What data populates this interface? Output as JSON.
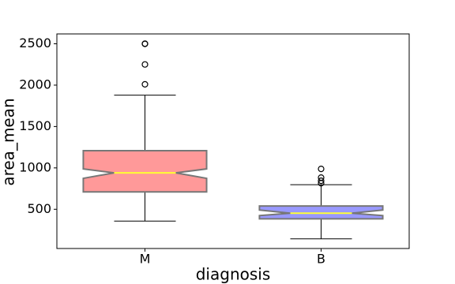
{
  "chart_data": {
    "type": "box",
    "xlabel": "diagnosis",
    "ylabel": "area_mean",
    "categories": [
      "M",
      "B"
    ],
    "boxes": [
      {
        "whislo": 357,
        "q1": 710,
        "notch_lo": 874,
        "med": 940,
        "notch_hi": 988,
        "q3": 1208,
        "whishi": 1879,
        "fliers": [
          2010,
          2250,
          2499,
          2501
        ],
        "color": "#ff9999"
      },
      {
        "whislo": 143,
        "q1": 385,
        "notch_lo": 424,
        "med": 453,
        "notch_hi": 491,
        "q3": 539,
        "whishi": 797,
        "fliers": [
          815,
          845,
          883,
          988
        ],
        "color": "#9999ff"
      }
    ],
    "edge_color": "#777777",
    "median_color": "#ffff33",
    "ylim": [
      26,
      2619
    ],
    "yticks": [
      500,
      1000,
      1500,
      2000,
      2500
    ]
  }
}
